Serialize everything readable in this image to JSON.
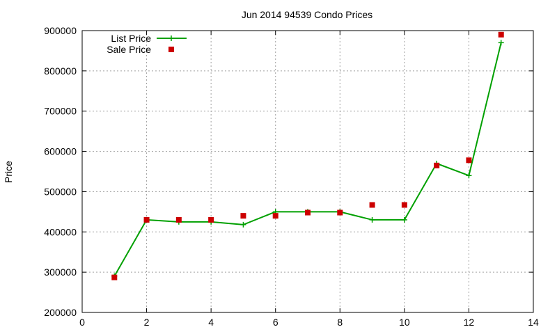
{
  "chart_data": {
    "type": "line",
    "title": "Jun 2014 94539 Condo Prices",
    "xlabel": "",
    "ylabel": "Price",
    "xlim": [
      0,
      14
    ],
    "ylim": [
      200000,
      900000
    ],
    "xticks": [
      "0",
      "2",
      "4",
      "6",
      "8",
      "10",
      "12",
      "14"
    ],
    "yticks": [
      "200000",
      "300000",
      "400000",
      "500000",
      "600000",
      "700000",
      "800000",
      "900000"
    ],
    "grid": true,
    "legend_position": "top-left",
    "series": [
      {
        "name": "List Price",
        "style": "line-with-plus-markers",
        "color": "#00a000",
        "x": [
          1,
          2,
          3,
          4,
          5,
          6,
          7,
          8,
          9,
          10,
          11,
          12,
          13
        ],
        "y": [
          290000,
          430000,
          425000,
          425000,
          418000,
          450000,
          450000,
          450000,
          430000,
          430000,
          570000,
          540000,
          870000
        ]
      },
      {
        "name": "Sale Price",
        "style": "square-markers",
        "color": "#cc0000",
        "x": [
          1,
          2,
          3,
          4,
          5,
          6,
          7,
          8,
          9,
          10,
          11,
          12,
          13
        ],
        "y": [
          287000,
          430000,
          430000,
          430000,
          440000,
          440000,
          448000,
          448000,
          467000,
          467000,
          565000,
          578000,
          890000
        ]
      }
    ]
  }
}
